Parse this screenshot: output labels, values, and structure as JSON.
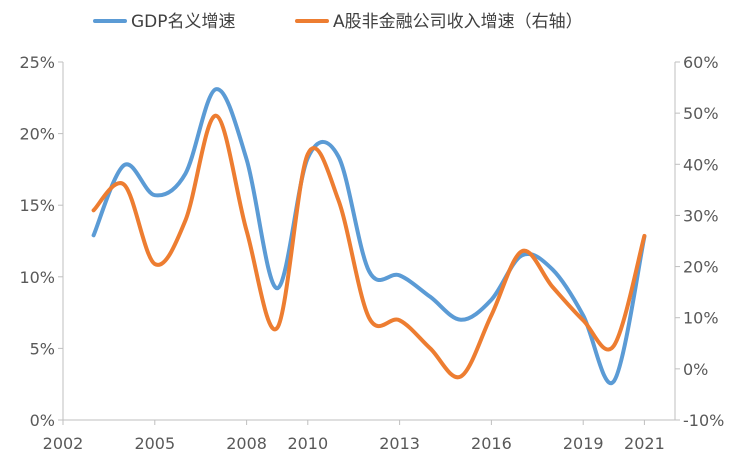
{
  "chart_data": {
    "type": "line",
    "title": "",
    "legend": [
      {
        "name": "GDP名义增速",
        "color": "#5B9BD5"
      },
      {
        "name": "A股非金融公司收入增速（右轴）",
        "color": "#ED7D31"
      }
    ],
    "x_ticks": [
      "2002",
      "2005",
      "2008",
      "2010",
      "2013",
      "2016",
      "2019",
      "2021"
    ],
    "x_range": [
      2002,
      2022
    ],
    "y_left": {
      "range": [
        0,
        25
      ],
      "ticks": [
        "0%",
        "5%",
        "10%",
        "15%",
        "20%",
        "25%"
      ],
      "tick_values": [
        0,
        5,
        10,
        15,
        20,
        25
      ]
    },
    "y_right": {
      "range": [
        -10,
        60
      ],
      "ticks": [
        "-10%",
        "0%",
        "10%",
        "20%",
        "30%",
        "40%",
        "50%",
        "60%"
      ],
      "tick_values": [
        -10,
        0,
        10,
        20,
        30,
        40,
        50,
        60
      ]
    },
    "series": [
      {
        "name": "GDP名义增速",
        "axis": "left",
        "color": "#5B9BD5",
        "x": [
          2003,
          2004,
          2005,
          2006,
          2007,
          2008,
          2009,
          2010,
          2011,
          2012,
          2013,
          2014,
          2015,
          2016,
          2017,
          2018,
          2019,
          2020,
          2021
        ],
        "values": [
          12.9,
          17.8,
          15.7,
          17.2,
          23.1,
          18.2,
          9.2,
          18.3,
          18.4,
          10.4,
          10.1,
          8.6,
          7.0,
          8.4,
          11.5,
          10.5,
          7.3,
          2.7,
          12.8
        ]
      },
      {
        "name": "A股非金融公司收入增速（右轴）",
        "axis": "right",
        "color": "#ED7D31",
        "x": [
          2003,
          2004,
          2005,
          2006,
          2007,
          2008,
          2009,
          2010,
          2011,
          2012,
          2013,
          2014,
          2015,
          2016,
          2017,
          2018,
          2019,
          2020,
          2021
        ],
        "values": [
          31,
          36,
          20.5,
          29,
          49.5,
          27,
          8,
          42,
          33,
          10,
          9.5,
          4,
          -1.5,
          10.5,
          23,
          16,
          9.5,
          4.5,
          26
        ]
      }
    ]
  }
}
